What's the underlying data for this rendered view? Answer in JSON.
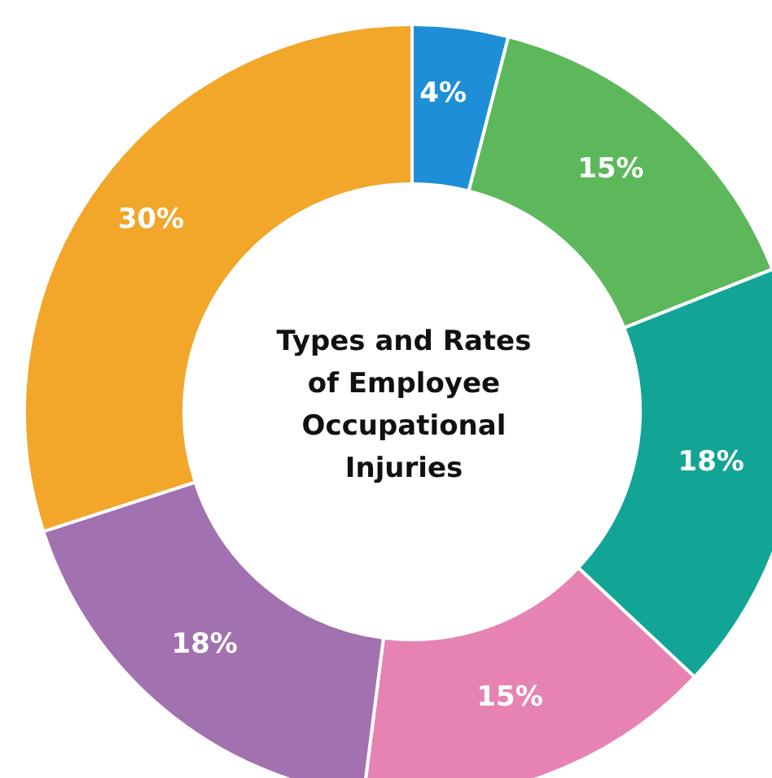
{
  "chart_data": {
    "type": "donut",
    "title": "Types and Rates of Employee Occupational Injuries",
    "categories": [
      null,
      null,
      null,
      null,
      null,
      null
    ],
    "values": [
      4,
      15,
      18,
      15,
      18,
      30
    ],
    "colors": [
      "#1e8fd6",
      "#5cb85a",
      "#12a596",
      "#e683b3",
      "#a271b0",
      "#f2a62a"
    ],
    "value_labels": [
      "4%",
      "15%",
      "18%",
      "15%",
      "18%",
      "30%"
    ]
  }
}
